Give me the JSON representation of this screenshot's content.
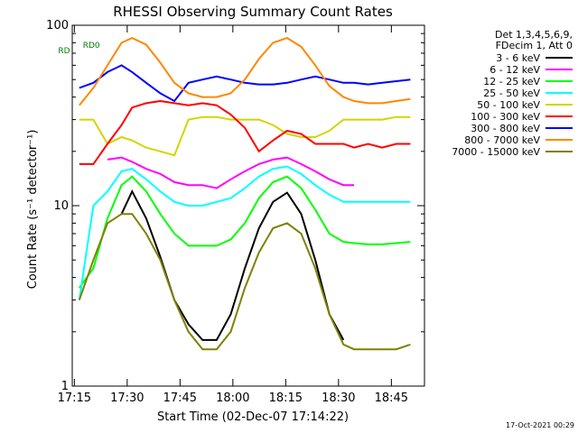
{
  "chart_data": {
    "type": "line",
    "title": "RHESSI Observing Summary Count Rates",
    "xlabel": "Start Time (02-Dec-07 17:14:22)",
    "ylabel": "Count Rate (s⁻¹ detector⁻¹)",
    "y_scale": "log",
    "ylim": [
      1,
      100
    ],
    "xlim_minutes": [
      0,
      100
    ],
    "x_tick_labels": [
      "17:15",
      "17:30",
      "17:45",
      "18:00",
      "18:15",
      "18:30",
      "18:45"
    ],
    "x_tick_minutes": [
      0.6,
      15.6,
      30.6,
      45.6,
      60.6,
      75.6,
      90.6
    ],
    "y_tick_labels": [
      "1",
      "10",
      "100"
    ],
    "y_tick_values": [
      1,
      10,
      100
    ],
    "legend_title": [
      "Det 1,3,4,5,6,9,",
      "FDecim 1, Att 0"
    ],
    "legend_position": "right",
    "timestamp": "17-Oct-2021 00:29",
    "annotations": [
      {
        "text": "RD0",
        "x_minute": 3,
        "y": 75,
        "color": "#008000"
      },
      {
        "text": "RD",
        "x_minute": -4,
        "y": 70,
        "color": "#008000"
      }
    ],
    "series": [
      {
        "name": "3 - 6 keV",
        "color": "#000000",
        "x": [
          2,
          6,
          10,
          14,
          17,
          21,
          25,
          29,
          33,
          37,
          41,
          45,
          49,
          53,
          57,
          61,
          65,
          69,
          73,
          77,
          80,
          84,
          88,
          92,
          96
        ],
        "values": [
          null,
          null,
          null,
          9,
          12,
          8.5,
          5.2,
          3.0,
          2.2,
          1.8,
          1.8,
          2.5,
          4.5,
          7.5,
          10.5,
          11.8,
          9.0,
          5.0,
          2.5,
          1.8,
          null,
          null,
          null,
          null,
          null
        ]
      },
      {
        "name": "6 - 12 keV",
        "color": "#ff00ff",
        "x": [
          10,
          14,
          17,
          21,
          25,
          29,
          33,
          37,
          41,
          45,
          49,
          53,
          57,
          61,
          65,
          69,
          73,
          77,
          80
        ],
        "values": [
          18,
          18.5,
          17.5,
          16,
          15,
          13.5,
          13,
          13,
          12.5,
          14,
          15.5,
          17,
          18,
          18.5,
          17,
          15.5,
          14,
          13,
          13
        ]
      },
      {
        "name": "12 - 25 keV",
        "color": "#00ff00",
        "x": [
          2,
          6,
          10,
          14,
          17,
          21,
          25,
          29,
          33,
          37,
          41,
          45,
          49,
          53,
          57,
          61,
          65,
          69,
          73,
          77,
          80,
          84,
          88,
          92,
          96
        ],
        "values": [
          3.5,
          4.5,
          8.5,
          13,
          14.5,
          12,
          9,
          7,
          6,
          6,
          6,
          6.5,
          8,
          11,
          13.5,
          14.5,
          12.5,
          9.5,
          7,
          6.3,
          6.2,
          6.1,
          6.1,
          6.2,
          6.3
        ]
      },
      {
        "name": "25 - 50 keV",
        "color": "#00ffff",
        "x": [
          2,
          6,
          10,
          14,
          17,
          21,
          25,
          29,
          33,
          37,
          41,
          45,
          49,
          53,
          57,
          61,
          65,
          69,
          73,
          77,
          80,
          84,
          88,
          92,
          96
        ],
        "values": [
          3,
          10,
          12,
          15.5,
          16,
          14,
          12,
          10.5,
          10,
          10,
          10.5,
          11,
          12.5,
          14.5,
          16,
          16.5,
          15,
          13,
          11.5,
          10.5,
          10.5,
          10.5,
          10.5,
          10.5,
          10.5
        ]
      },
      {
        "name": "50 - 100 keV",
        "color": "#d4d400",
        "x": [
          2,
          6,
          10,
          14,
          17,
          21,
          25,
          29,
          33,
          37,
          41,
          45,
          49,
          53,
          57,
          61,
          65,
          69,
          73,
          77,
          80,
          84,
          88,
          92,
          96
        ],
        "values": [
          30,
          30,
          22,
          24,
          23,
          21,
          20,
          19,
          30,
          31,
          31,
          30,
          30,
          30,
          28,
          25,
          24,
          24,
          26,
          30,
          30,
          30,
          30,
          31,
          31
        ]
      },
      {
        "name": "100 - 300 keV",
        "color": "#ff0000",
        "x": [
          2,
          6,
          10,
          14,
          17,
          21,
          25,
          29,
          33,
          37,
          41,
          45,
          49,
          53,
          57,
          61,
          65,
          69,
          73,
          77,
          80,
          84,
          88,
          92,
          96
        ],
        "values": [
          17,
          17,
          22,
          28,
          35,
          37,
          38,
          37,
          36,
          37,
          36,
          32,
          27,
          20,
          23,
          26,
          25,
          22,
          22,
          22,
          21,
          22,
          21,
          22,
          22
        ]
      },
      {
        "name": "300 - 800 keV",
        "color": "#0000ff",
        "x": [
          2,
          6,
          10,
          14,
          17,
          21,
          25,
          29,
          33,
          37,
          41,
          45,
          49,
          53,
          57,
          61,
          65,
          69,
          73,
          77,
          80,
          84,
          88,
          92,
          96
        ],
        "values": [
          45,
          48,
          55,
          60,
          55,
          48,
          42,
          38,
          48,
          50,
          52,
          50,
          48,
          47,
          47,
          48,
          50,
          52,
          50,
          48,
          48,
          47,
          48,
          49,
          50
        ]
      },
      {
        "name": "800 - 7000 keV",
        "color": "#ff8800",
        "x": [
          2,
          6,
          10,
          14,
          17,
          21,
          25,
          29,
          33,
          37,
          41,
          45,
          49,
          53,
          57,
          61,
          65,
          69,
          73,
          77,
          80,
          84,
          88,
          92,
          96
        ],
        "values": [
          36,
          45,
          60,
          80,
          85,
          78,
          62,
          48,
          42,
          40,
          40,
          42,
          50,
          65,
          80,
          85,
          76,
          60,
          46,
          40,
          38,
          37,
          37,
          38,
          39
        ]
      },
      {
        "name": "7000 - 15000 keV",
        "color": "#808000",
        "x": [
          2,
          6,
          10,
          14,
          17,
          21,
          25,
          29,
          33,
          37,
          41,
          45,
          49,
          53,
          57,
          61,
          65,
          69,
          73,
          77,
          80,
          84,
          88,
          92,
          96
        ],
        "values": [
          3,
          5,
          8,
          9,
          9,
          7,
          5,
          3,
          2,
          1.6,
          1.6,
          2,
          3.5,
          5.5,
          7.5,
          8,
          7,
          4.5,
          2.5,
          1.7,
          1.6,
          1.6,
          1.6,
          1.6,
          1.7
        ]
      }
    ]
  }
}
